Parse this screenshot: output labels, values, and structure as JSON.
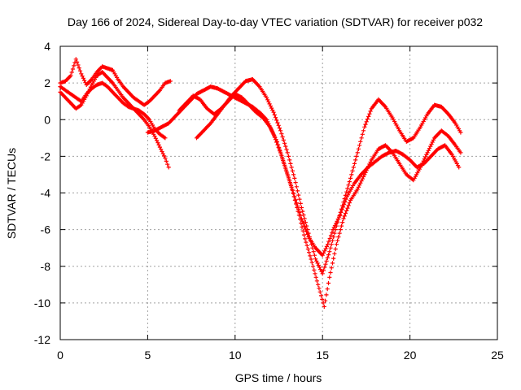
{
  "chart_data": {
    "type": "scatter",
    "title": "Day 166 of 2024, Sidereal Day-to-day VTEC variation (SDTVAR) for receiver p032",
    "xlabel": "GPS time / hours",
    "ylabel": "SDTVAR / TECUs",
    "xlim": [
      0,
      25
    ],
    "ylim": [
      -12,
      4
    ],
    "xticks": [
      0,
      5,
      10,
      15,
      20,
      25
    ],
    "yticks": [
      -12,
      -10,
      -8,
      -6,
      -4,
      -2,
      0,
      2,
      4
    ],
    "grid": true,
    "marker": "plus",
    "color": "#ff0000",
    "series": [
      {
        "x": [
          0.0,
          0.3,
          0.6,
          0.9,
          1.2,
          1.5,
          1.8,
          2.1,
          2.4,
          2.7,
          3.0,
          3.3,
          3.6,
          3.9,
          4.2,
          4.5,
          4.8,
          5.1,
          5.4,
          5.7,
          6.0,
          6.2
        ],
        "y": [
          1.5,
          1.2,
          0.9,
          0.6,
          0.8,
          1.3,
          1.9,
          2.4,
          2.6,
          2.3,
          2.0,
          1.6,
          1.2,
          0.9,
          0.6,
          0.3,
          0.0,
          -0.4,
          -0.9,
          -1.5,
          -2.1,
          -2.6
        ]
      },
      {
        "x": [
          0.0,
          0.3,
          0.6,
          0.9,
          1.2,
          1.5,
          1.8,
          2.1,
          2.4,
          2.7,
          3.0,
          3.3,
          3.6,
          3.9,
          4.2,
          4.5,
          4.8,
          5.1,
          5.4,
          5.7,
          6.0,
          6.3
        ],
        "y": [
          2.0,
          2.1,
          2.4,
          3.3,
          2.5,
          1.9,
          2.2,
          2.6,
          2.9,
          2.8,
          2.7,
          2.2,
          1.8,
          1.5,
          1.2,
          1.0,
          0.8,
          1.0,
          1.3,
          1.6,
          2.0,
          2.1
        ]
      },
      {
        "x": [
          0.0,
          0.3,
          0.6,
          0.9,
          1.2,
          1.5,
          1.8,
          2.1,
          2.4,
          2.7,
          3.0,
          3.3,
          3.6,
          3.9,
          4.2,
          4.5,
          4.8,
          5.1,
          5.4,
          5.7,
          6.0
        ],
        "y": [
          1.8,
          1.6,
          1.4,
          1.2,
          1.0,
          1.4,
          1.7,
          1.9,
          2.0,
          1.8,
          1.5,
          1.2,
          0.9,
          0.7,
          0.6,
          0.5,
          0.3,
          0.0,
          -0.5,
          -0.8,
          -1.0
        ]
      },
      {
        "x": [
          5.0,
          5.4,
          5.8,
          6.2,
          6.6,
          7.0,
          7.4,
          7.8,
          8.2,
          8.6,
          9.0,
          9.4,
          9.8,
          10.2,
          10.6,
          11.0,
          11.4,
          11.8,
          12.2,
          12.6,
          13.0,
          13.4,
          13.8,
          14.2,
          14.6,
          15.0,
          15.3,
          15.6,
          16.0,
          16.4,
          16.8,
          17.2,
          17.6,
          18.0,
          18.4,
          18.8,
          19.2,
          19.6,
          20.0,
          20.4,
          20.8,
          21.2,
          21.6,
          22.0,
          22.4,
          22.8
        ],
        "y": [
          -0.7,
          -0.6,
          -0.4,
          -0.2,
          0.2,
          0.6,
          1.0,
          1.4,
          1.6,
          1.8,
          1.7,
          1.5,
          1.3,
          1.1,
          0.9,
          0.7,
          0.4,
          0.0,
          -0.8,
          -1.8,
          -3.0,
          -4.2,
          -5.4,
          -6.4,
          -7.0,
          -7.4,
          -6.8,
          -6.0,
          -5.2,
          -4.2,
          -3.5,
          -3.0,
          -2.6,
          -2.3,
          -2.0,
          -1.8,
          -1.7,
          -1.9,
          -2.2,
          -2.6,
          -2.4,
          -2.0,
          -1.6,
          -1.4,
          -1.9,
          -2.6
        ]
      },
      {
        "x": [
          6.8,
          7.2,
          7.6,
          8.0,
          8.4,
          8.8,
          9.2,
          9.6,
          10.0,
          10.4,
          10.8,
          11.2,
          11.6,
          12.0,
          12.4,
          12.8,
          13.2,
          13.6,
          14.0,
          14.4,
          14.8,
          15.1,
          15.4,
          15.8,
          16.2,
          16.6,
          17.0,
          17.4,
          17.8,
          18.2,
          18.6,
          19.0,
          19.4,
          19.8,
          20.2,
          20.6,
          21.0,
          21.4,
          21.8,
          22.2,
          22.6,
          22.9
        ],
        "y": [
          0.5,
          0.9,
          1.3,
          1.1,
          0.6,
          0.3,
          0.6,
          1.0,
          1.4,
          1.2,
          0.8,
          0.4,
          0.1,
          -0.4,
          -1.2,
          -2.4,
          -3.6,
          -5.0,
          -6.5,
          -7.8,
          -9.2,
          -10.2,
          -8.6,
          -6.8,
          -5.4,
          -4.4,
          -3.8,
          -3.0,
          -2.2,
          -1.6,
          -1.4,
          -1.8,
          -2.4,
          -3.0,
          -3.3,
          -2.6,
          -1.8,
          -1.0,
          -0.6,
          -0.9,
          -1.4,
          -1.8
        ]
      },
      {
        "x": [
          7.8,
          8.2,
          8.6,
          9.0,
          9.4,
          9.8,
          10.2,
          10.6,
          11.0,
          11.4,
          11.8,
          12.2,
          12.6,
          13.0,
          13.4,
          13.8,
          14.2,
          14.6,
          15.0,
          15.4,
          15.8,
          16.2,
          16.6,
          17.0,
          17.4,
          17.8,
          18.2,
          18.6,
          19.0,
          19.4,
          19.8,
          20.2,
          20.6,
          21.0,
          21.4,
          21.8,
          22.2,
          22.6,
          22.9
        ],
        "y": [
          -1.0,
          -0.6,
          -0.2,
          0.3,
          0.8,
          1.3,
          1.7,
          2.1,
          2.2,
          1.8,
          1.2,
          0.4,
          -0.6,
          -1.8,
          -3.2,
          -4.8,
          -6.2,
          -7.6,
          -8.4,
          -7.2,
          -5.8,
          -4.5,
          -3.2,
          -1.8,
          -0.4,
          0.6,
          1.1,
          0.7,
          0.1,
          -0.6,
          -1.2,
          -1.0,
          -0.4,
          0.3,
          0.8,
          0.7,
          0.3,
          -0.2,
          -0.7
        ]
      }
    ]
  }
}
